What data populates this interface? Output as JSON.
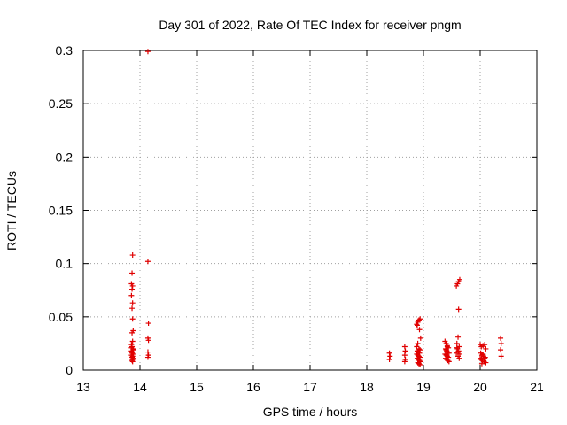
{
  "chart_data": {
    "type": "scatter",
    "title": "Day 301 of 2022, Rate Of TEC Index for receiver pngm",
    "xlabel": "GPS time / hours",
    "ylabel": "ROTI / TECUs",
    "xlim": [
      13,
      21
    ],
    "ylim": [
      0,
      0.3
    ],
    "grid": true,
    "marker": "+",
    "marker_color": "#e00000",
    "xticks": [
      {
        "value": 13,
        "label": "13"
      },
      {
        "value": 14,
        "label": "14"
      },
      {
        "value": 15,
        "label": "15"
      },
      {
        "value": 16,
        "label": "16"
      },
      {
        "value": 17,
        "label": "17"
      },
      {
        "value": 18,
        "label": "18"
      },
      {
        "value": 19,
        "label": "19"
      },
      {
        "value": 20,
        "label": "20"
      },
      {
        "value": 21,
        "label": "21"
      }
    ],
    "yticks": [
      {
        "value": 0,
        "label": "0"
      },
      {
        "value": 0.05,
        "label": "0.05"
      },
      {
        "value": 0.1,
        "label": "0.1"
      },
      {
        "value": 0.15,
        "label": "0.15"
      },
      {
        "value": 0.2,
        "label": "0.2"
      },
      {
        "value": 0.25,
        "label": "0.25"
      },
      {
        "value": 0.3,
        "label": "0.3"
      }
    ],
    "series": [
      {
        "name": "ROTI",
        "points": [
          [
            13.87,
            0.108
          ],
          [
            13.86,
            0.091
          ],
          [
            13.85,
            0.081
          ],
          [
            13.87,
            0.079
          ],
          [
            13.86,
            0.076
          ],
          [
            13.85,
            0.07
          ],
          [
            13.87,
            0.063
          ],
          [
            13.86,
            0.058
          ],
          [
            13.87,
            0.048
          ],
          [
            13.88,
            0.037
          ],
          [
            13.86,
            0.035
          ],
          [
            13.87,
            0.027
          ],
          [
            13.85,
            0.024
          ],
          [
            13.86,
            0.022
          ],
          [
            13.88,
            0.02
          ],
          [
            13.85,
            0.018
          ],
          [
            13.87,
            0.017
          ],
          [
            13.86,
            0.016
          ],
          [
            13.88,
            0.015
          ],
          [
            13.85,
            0.014
          ],
          [
            13.87,
            0.013
          ],
          [
            13.86,
            0.012
          ],
          [
            13.88,
            0.011
          ],
          [
            13.87,
            0.01
          ],
          [
            13.86,
            0.009
          ],
          [
            13.87,
            0.008
          ],
          [
            13.88,
            0.019
          ],
          [
            13.85,
            0.021
          ],
          [
            14.14,
            0.299
          ],
          [
            14.14,
            0.102
          ],
          [
            14.15,
            0.044
          ],
          [
            14.14,
            0.03
          ],
          [
            14.15,
            0.028
          ],
          [
            14.14,
            0.017
          ],
          [
            14.15,
            0.014
          ],
          [
            14.14,
            0.012
          ],
          [
            18.4,
            0.016
          ],
          [
            18.41,
            0.013
          ],
          [
            18.4,
            0.01
          ],
          [
            18.67,
            0.022
          ],
          [
            18.68,
            0.018
          ],
          [
            18.67,
            0.014
          ],
          [
            18.68,
            0.01
          ],
          [
            18.67,
            0.008
          ],
          [
            18.88,
            0.043
          ],
          [
            18.9,
            0.045
          ],
          [
            18.92,
            0.047
          ],
          [
            18.94,
            0.048
          ],
          [
            18.89,
            0.042
          ],
          [
            18.93,
            0.038
          ],
          [
            18.95,
            0.03
          ],
          [
            18.9,
            0.025
          ],
          [
            18.88,
            0.022
          ],
          [
            18.92,
            0.02
          ],
          [
            18.94,
            0.019
          ],
          [
            18.89,
            0.018
          ],
          [
            18.91,
            0.017
          ],
          [
            18.93,
            0.016
          ],
          [
            18.88,
            0.015
          ],
          [
            18.9,
            0.014
          ],
          [
            18.92,
            0.013
          ],
          [
            18.94,
            0.012
          ],
          [
            18.89,
            0.011
          ],
          [
            18.91,
            0.01
          ],
          [
            18.93,
            0.009
          ],
          [
            18.95,
            0.008
          ],
          [
            18.9,
            0.007
          ],
          [
            18.92,
            0.006
          ],
          [
            18.94,
            0.005
          ],
          [
            19.38,
            0.027
          ],
          [
            19.4,
            0.025
          ],
          [
            19.42,
            0.023
          ],
          [
            19.44,
            0.021
          ],
          [
            19.39,
            0.02
          ],
          [
            19.41,
            0.018
          ],
          [
            19.43,
            0.017
          ],
          [
            19.45,
            0.016
          ],
          [
            19.38,
            0.015
          ],
          [
            19.4,
            0.014
          ],
          [
            19.42,
            0.013
          ],
          [
            19.44,
            0.012
          ],
          [
            19.39,
            0.011
          ],
          [
            19.41,
            0.01
          ],
          [
            19.43,
            0.009
          ],
          [
            19.45,
            0.008
          ],
          [
            19.4,
            0.019
          ],
          [
            19.42,
            0.022
          ],
          [
            19.58,
            0.079
          ],
          [
            19.6,
            0.081
          ],
          [
            19.62,
            0.083
          ],
          [
            19.64,
            0.085
          ],
          [
            19.62,
            0.057
          ],
          [
            19.61,
            0.031
          ],
          [
            19.59,
            0.025
          ],
          [
            19.63,
            0.022
          ],
          [
            19.6,
            0.02
          ],
          [
            19.62,
            0.018
          ],
          [
            19.58,
            0.016
          ],
          [
            19.64,
            0.015
          ],
          [
            19.61,
            0.013
          ],
          [
            19.63,
            0.011
          ],
          [
            19.59,
            0.021
          ],
          [
            20.0,
            0.024
          ],
          [
            20.02,
            0.022
          ],
          [
            20.05,
            0.023
          ],
          [
            20.08,
            0.024
          ],
          [
            20.1,
            0.02
          ],
          [
            20.01,
            0.016
          ],
          [
            20.03,
            0.014
          ],
          [
            20.06,
            0.013
          ],
          [
            20.09,
            0.012
          ],
          [
            20.0,
            0.011
          ],
          [
            20.02,
            0.01
          ],
          [
            20.04,
            0.009
          ],
          [
            20.07,
            0.008
          ],
          [
            20.1,
            0.007
          ],
          [
            20.03,
            0.006
          ],
          [
            20.05,
            0.015
          ],
          [
            20.08,
            0.011
          ],
          [
            20.36,
            0.03
          ],
          [
            20.37,
            0.025
          ],
          [
            20.36,
            0.019
          ],
          [
            20.37,
            0.013
          ]
        ]
      }
    ]
  }
}
